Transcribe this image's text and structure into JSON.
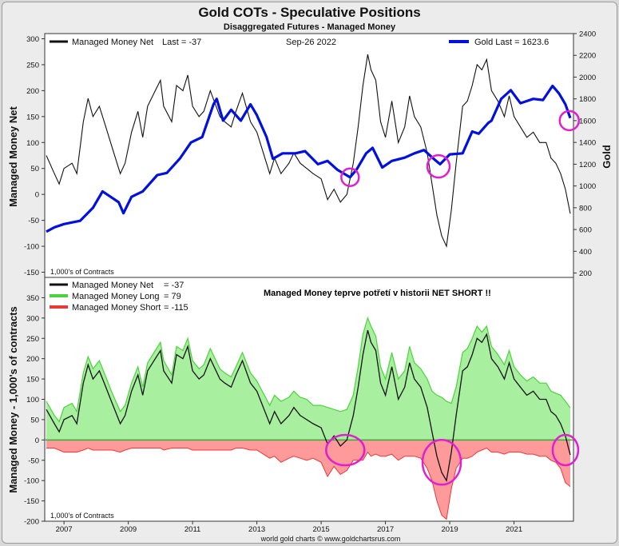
{
  "header": {
    "title": "Gold COTs - Speculative Positions",
    "subtitle": "Disaggregated Futures - Managed Money"
  },
  "footer": {
    "credit": "world gold charts © www.goldchartsrus.com"
  },
  "colors": {
    "net": "#111111",
    "gold": "#0010e0",
    "long_fill": "#a8f0a0",
    "long_line": "#4ad43a",
    "short_fill": "#ff9a9a",
    "short_line": "#e83a3a",
    "highlight": "#e020d0"
  },
  "chart_data": [
    {
      "type": "line",
      "panel": "top",
      "date": "Sep-26  2022",
      "ylabel": "Managed Money Net",
      "ylabel_right": "Gold",
      "units_note": "1,000's of Contracts",
      "xlim": [
        2006.4,
        2022.85
      ],
      "ylim": [
        -160,
        310
      ],
      "ylim_right": [
        160,
        2400
      ],
      "yticks": [
        -150,
        -100,
        -50,
        0,
        50,
        100,
        150,
        200,
        250,
        300
      ],
      "yticks_right": [
        200,
        400,
        600,
        800,
        1000,
        1200,
        1400,
        1600,
        1800,
        2000,
        2200,
        2400
      ],
      "legend": [
        {
          "label": "Managed Money Net",
          "last": "Last = -37"
        },
        {
          "label": "Gold Last = 1623.6"
        }
      ],
      "series": [
        {
          "name": "Managed Money Net",
          "x": [
            2006.45,
            2006.7,
            2006.85,
            2007.0,
            2007.25,
            2007.4,
            2007.6,
            2007.75,
            2007.9,
            2008.1,
            2008.3,
            2008.5,
            2008.75,
            2008.9,
            2009.1,
            2009.3,
            2009.45,
            2009.6,
            2009.8,
            2010.0,
            2010.1,
            2010.35,
            2010.5,
            2010.7,
            2010.85,
            2011.0,
            2011.2,
            2011.35,
            2011.55,
            2011.7,
            2011.85,
            2012.0,
            2012.2,
            2012.35,
            2012.55,
            2012.8,
            2013.0,
            2013.2,
            2013.4,
            2013.55,
            2013.75,
            2014.0,
            2014.15,
            2014.35,
            2014.55,
            2014.75,
            2015.0,
            2015.2,
            2015.4,
            2015.6,
            2015.8,
            2016.0,
            2016.15,
            2016.3,
            2016.45,
            2016.55,
            2016.7,
            2016.85,
            2017.0,
            2017.2,
            2017.4,
            2017.6,
            2017.75,
            2017.9,
            2018.1,
            2018.3,
            2018.45,
            2018.6,
            2018.75,
            2018.9,
            2019.05,
            2019.2,
            2019.4,
            2019.55,
            2019.7,
            2019.85,
            2020.0,
            2020.15,
            2020.3,
            2020.5,
            2020.7,
            2020.85,
            2021.0,
            2021.2,
            2021.4,
            2021.6,
            2021.8,
            2022.0,
            2022.15,
            2022.3,
            2022.45,
            2022.6,
            2022.75
          ],
          "values": [
            75,
            40,
            20,
            50,
            60,
            40,
            140,
            185,
            150,
            170,
            130,
            90,
            40,
            60,
            120,
            160,
            110,
            170,
            195,
            220,
            170,
            140,
            210,
            200,
            230,
            170,
            150,
            160,
            200,
            175,
            150,
            140,
            130,
            160,
            195,
            140,
            120,
            80,
            40,
            70,
            40,
            60,
            80,
            60,
            50,
            40,
            30,
            -10,
            10,
            -15,
            0,
            60,
            130,
            210,
            270,
            240,
            220,
            140,
            110,
            180,
            100,
            130,
            190,
            150,
            130,
            80,
            20,
            -40,
            -80,
            -100,
            -30,
            60,
            170,
            180,
            210,
            250,
            240,
            260,
            200,
            180,
            150,
            190,
            150,
            130,
            110,
            120,
            100,
            100,
            70,
            60,
            40,
            10,
            -37
          ]
        },
        {
          "name": "Gold",
          "x": [
            2006.45,
            2006.7,
            2007.0,
            2007.5,
            2007.9,
            2008.2,
            2008.45,
            2008.7,
            2008.85,
            2009.1,
            2009.45,
            2009.9,
            2010.2,
            2010.6,
            2010.95,
            2011.3,
            2011.65,
            2011.75,
            2011.95,
            2012.2,
            2012.5,
            2012.8,
            2013.0,
            2013.3,
            2013.5,
            2013.8,
            2014.2,
            2014.5,
            2014.9,
            2015.2,
            2015.5,
            2015.9,
            2016.1,
            2016.4,
            2016.6,
            2016.9,
            2017.2,
            2017.6,
            2017.9,
            2018.2,
            2018.5,
            2018.7,
            2019.0,
            2019.4,
            2019.7,
            2019.9,
            2020.2,
            2020.3,
            2020.6,
            2020.9,
            2021.2,
            2021.6,
            2021.9,
            2022.2,
            2022.4,
            2022.6,
            2022.75
          ],
          "values": [
            580,
            620,
            650,
            680,
            800,
            950,
            900,
            850,
            750,
            900,
            950,
            1100,
            1120,
            1250,
            1400,
            1450,
            1750,
            1800,
            1600,
            1700,
            1600,
            1750,
            1650,
            1450,
            1250,
            1300,
            1300,
            1320,
            1200,
            1230,
            1150,
            1080,
            1150,
            1300,
            1350,
            1170,
            1230,
            1260,
            1300,
            1330,
            1250,
            1200,
            1290,
            1300,
            1500,
            1480,
            1580,
            1600,
            1800,
            1880,
            1760,
            1800,
            1790,
            1920,
            1850,
            1750,
            1623.6
          ]
        }
      ]
    },
    {
      "type": "area",
      "panel": "bottom",
      "ylabel": "Managed Money - 1,000's of contracts",
      "units_note": "1,000's of Contracts",
      "annotation": "Managed Money teprve potřetí v historii NET SHORT !!",
      "xlim": [
        2006.4,
        2022.85
      ],
      "ylim": [
        -200,
        400
      ],
      "yticks": [
        -200,
        -150,
        -100,
        -50,
        0,
        50,
        100,
        150,
        200,
        250,
        300,
        350
      ],
      "xticks": [
        2007,
        2009,
        2011,
        2013,
        2015,
        2017,
        2019,
        2021
      ],
      "legend": [
        {
          "label": "Managed Money Net",
          "last": "= -37"
        },
        {
          "label": "Managed Money Long",
          "last": "= 79"
        },
        {
          "label": "Managed Money Short",
          "last": "= -115"
        }
      ],
      "x": [
        2006.45,
        2006.7,
        2006.85,
        2007.0,
        2007.25,
        2007.4,
        2007.6,
        2007.75,
        2007.9,
        2008.1,
        2008.3,
        2008.5,
        2008.75,
        2008.9,
        2009.1,
        2009.3,
        2009.45,
        2009.6,
        2009.8,
        2010.0,
        2010.1,
        2010.35,
        2010.5,
        2010.7,
        2010.85,
        2011.0,
        2011.2,
        2011.35,
        2011.55,
        2011.7,
        2011.85,
        2012.0,
        2012.2,
        2012.35,
        2012.55,
        2012.8,
        2013.0,
        2013.2,
        2013.4,
        2013.55,
        2013.75,
        2014.0,
        2014.15,
        2014.35,
        2014.55,
        2014.75,
        2015.0,
        2015.2,
        2015.4,
        2015.6,
        2015.8,
        2016.0,
        2016.15,
        2016.3,
        2016.45,
        2016.55,
        2016.7,
        2016.85,
        2017.0,
        2017.2,
        2017.4,
        2017.6,
        2017.75,
        2017.9,
        2018.1,
        2018.3,
        2018.45,
        2018.6,
        2018.75,
        2018.9,
        2019.05,
        2019.2,
        2019.4,
        2019.55,
        2019.7,
        2019.85,
        2020.0,
        2020.15,
        2020.3,
        2020.5,
        2020.7,
        2020.85,
        2021.0,
        2021.2,
        2021.4,
        2021.6,
        2021.8,
        2022.0,
        2022.15,
        2022.3,
        2022.45,
        2022.6,
        2022.75
      ],
      "series": [
        {
          "name": "Managed Money Long",
          "values": [
            95,
            60,
            45,
            80,
            90,
            70,
            165,
            205,
            175,
            195,
            155,
            115,
            70,
            85,
            140,
            180,
            130,
            190,
            215,
            240,
            195,
            160,
            230,
            220,
            250,
            195,
            175,
            185,
            225,
            200,
            175,
            165,
            155,
            180,
            215,
            165,
            145,
            115,
            85,
            110,
            95,
            105,
            120,
            105,
            100,
            85,
            85,
            80,
            75,
            70,
            75,
            110,
            180,
            260,
            300,
            280,
            255,
            180,
            150,
            215,
            150,
            170,
            230,
            190,
            175,
            150,
            120,
            110,
            105,
            95,
            90,
            130,
            215,
            225,
            250,
            280,
            265,
            280,
            230,
            210,
            185,
            220,
            180,
            160,
            145,
            155,
            140,
            140,
            120,
            115,
            110,
            95,
            79
          ]
        },
        {
          "name": "Managed Money Short",
          "values": [
            -20,
            -20,
            -25,
            -30,
            -30,
            -30,
            -25,
            -20,
            -25,
            -25,
            -25,
            -25,
            -30,
            -25,
            -20,
            -20,
            -20,
            -20,
            -20,
            -20,
            -25,
            -20,
            -20,
            -20,
            -20,
            -25,
            -25,
            -25,
            -25,
            -25,
            -25,
            -25,
            -25,
            -20,
            -20,
            -25,
            -25,
            -35,
            -45,
            -40,
            -55,
            -45,
            -40,
            -45,
            -50,
            -45,
            -55,
            -90,
            -65,
            -85,
            -75,
            -50,
            -50,
            -50,
            -30,
            -40,
            -35,
            -40,
            -40,
            -35,
            -50,
            -40,
            -40,
            -40,
            -45,
            -70,
            -100,
            -150,
            -185,
            -195,
            -120,
            -70,
            -45,
            -45,
            -40,
            -30,
            -25,
            -20,
            -30,
            -30,
            -35,
            -30,
            -30,
            -30,
            -35,
            -35,
            -40,
            -40,
            -50,
            -55,
            -70,
            -105,
            -115
          ]
        },
        {
          "name": "Managed Money Net",
          "values": [
            75,
            40,
            20,
            50,
            60,
            40,
            140,
            185,
            150,
            170,
            130,
            90,
            40,
            60,
            120,
            160,
            110,
            170,
            195,
            220,
            170,
            140,
            210,
            200,
            230,
            170,
            150,
            160,
            200,
            175,
            150,
            140,
            130,
            160,
            195,
            140,
            120,
            80,
            40,
            70,
            40,
            60,
            80,
            60,
            50,
            40,
            30,
            -10,
            10,
            -15,
            0,
            60,
            130,
            210,
            270,
            240,
            220,
            140,
            110,
            180,
            100,
            130,
            190,
            150,
            130,
            80,
            20,
            -40,
            -80,
            -100,
            -30,
            60,
            170,
            180,
            210,
            250,
            240,
            260,
            200,
            180,
            150,
            190,
            150,
            130,
            110,
            120,
            100,
            100,
            70,
            60,
            40,
            10,
            -37
          ]
        }
      ]
    }
  ]
}
